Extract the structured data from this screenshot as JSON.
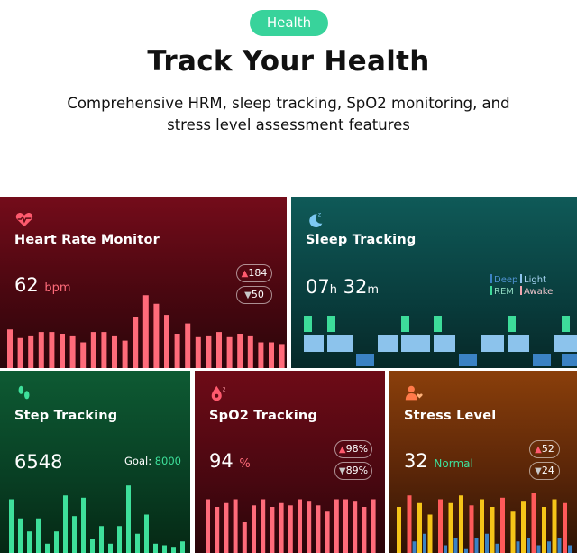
{
  "header": {
    "pill_label": "Health",
    "title": "Track Your Health",
    "subtitle_line1": "Comprehensive HRM, sleep tracking, SpO2 monitoring, and",
    "subtitle_line2": "stress level assessment features"
  },
  "colors": {
    "pill": "#38d39b",
    "heart_bar": "#ff6b7a",
    "sleep_deep": "#3b82c4",
    "sleep_light": "#8cc3ec",
    "sleep_rem": "#3ddc9a",
    "sleep_awake": "#f3a6b0",
    "step_bar": "#3ee09b",
    "stress_yellow": "#f5c518",
    "stress_red": "#ff5a5a",
    "stress_blue": "#3b82c4"
  },
  "cards": {
    "heart": {
      "title": "Heart Rate Monitor",
      "value": "62",
      "unit": "bpm",
      "max_value": "184",
      "min_value": "50",
      "icon": "heart-pulse-icon"
    },
    "sleep": {
      "title": "Sleep Tracking",
      "hours": "07",
      "hours_unit": "h",
      "minutes": "32",
      "minutes_unit": "m",
      "legend_deep": "Deep",
      "legend_light": "Light",
      "legend_rem": "REM",
      "legend_awake": "Awake",
      "icon": "moon-icon"
    },
    "step": {
      "title": "Step Tracking",
      "value": "6548",
      "goal_label": "Goal:",
      "goal_value": "8000",
      "icon": "footsteps-icon"
    },
    "spo2": {
      "title": "SpO2 Tracking",
      "value": "94",
      "unit": "%",
      "max_value": "98%",
      "min_value": "89%",
      "icon": "oxygen-drop-icon"
    },
    "stress": {
      "title": "Stress Level",
      "value": "32",
      "status": "Normal",
      "max_value": "52",
      "min_value": "24",
      "icon": "person-heart-icon"
    }
  },
  "chart_data": [
    {
      "type": "bar",
      "name_ref": "heart",
      "values": [
        45,
        35,
        38,
        42,
        42,
        40,
        38,
        30,
        42,
        42,
        38,
        32,
        60,
        85,
        75,
        62,
        40,
        52,
        36,
        38,
        42,
        36,
        40,
        38,
        30,
        30,
        28
      ]
    },
    {
      "type": "bar",
      "name_ref": "step",
      "values": [
        70,
        45,
        28,
        45,
        12,
        28,
        75,
        48,
        72,
        18,
        35,
        12,
        35,
        88,
        25,
        50,
        12,
        10,
        8,
        15
      ]
    },
    {
      "type": "bar",
      "name_ref": "spo2",
      "values": [
        70,
        60,
        65,
        70,
        40,
        62,
        70,
        60,
        65,
        62,
        70,
        68,
        62,
        55,
        70,
        70,
        68,
        60,
        70
      ]
    },
    {
      "type": "bar",
      "name_ref": "stress",
      "series": [
        {
          "values": [
            60,
            75,
            65,
            50,
            70,
            65,
            75,
            62,
            70,
            60,
            72,
            55,
            68,
            78,
            60,
            70,
            65
          ]
        },
        {
          "values": [
            0,
            15,
            25,
            0,
            10,
            20,
            5,
            20,
            25,
            12,
            0,
            15,
            20,
            10,
            15,
            20,
            10
          ]
        }
      ]
    },
    {
      "type": "timeline",
      "name_ref": "sleep",
      "stages": [
        "rem",
        "light",
        "rem",
        "light",
        "deep",
        "light",
        "rem",
        "light",
        "rem",
        "light",
        "deep",
        "light",
        "rem",
        "light",
        "deep",
        "light",
        "rem",
        "light",
        "deep"
      ]
    }
  ]
}
